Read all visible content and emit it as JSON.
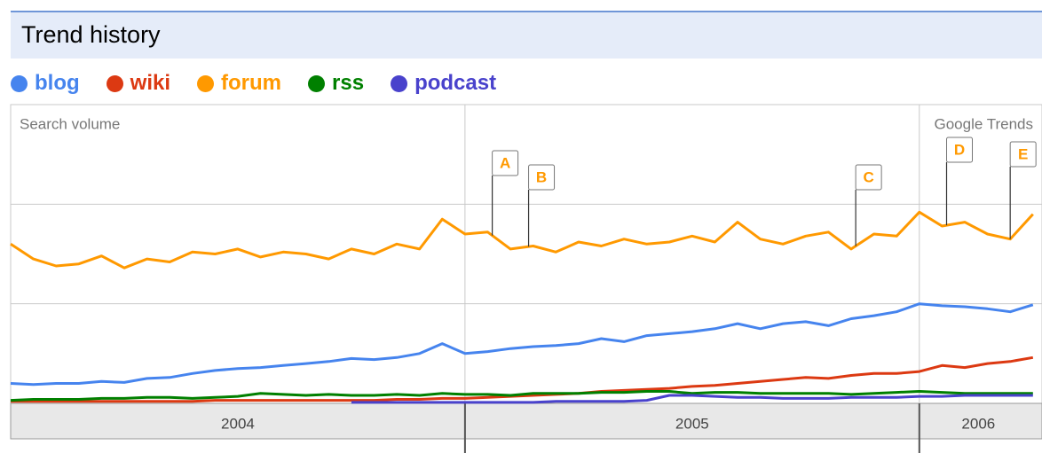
{
  "header": {
    "title": "Trend history"
  },
  "chart_data": {
    "type": "line",
    "y_label": "Search volume",
    "watermark": "Google Trends",
    "xlim": [
      2004,
      2006.27
    ],
    "ylim": [
      0,
      3
    ],
    "yticks": [
      1,
      2
    ],
    "grid": true,
    "xticks": [
      {
        "value": 2004.5,
        "label": "2004"
      },
      {
        "value": 2005.5,
        "label": "2005"
      },
      {
        "value": 2006.13,
        "label": "2006"
      }
    ],
    "year_boundaries": [
      2005,
      2006
    ],
    "x": [
      2004.0,
      2004.05,
      2004.1,
      2004.15,
      2004.2,
      2004.25,
      2004.3,
      2004.35,
      2004.4,
      2004.45,
      2004.5,
      2004.55,
      2004.6,
      2004.65,
      2004.7,
      2004.75,
      2004.8,
      2004.85,
      2004.9,
      2004.95,
      2005.0,
      2005.05,
      2005.1,
      2005.15,
      2005.2,
      2005.25,
      2005.3,
      2005.35,
      2005.4,
      2005.45,
      2005.5,
      2005.55,
      2005.6,
      2005.65,
      2005.7,
      2005.75,
      2005.8,
      2005.85,
      2005.9,
      2005.95,
      2006.0,
      2006.05,
      2006.1,
      2006.15,
      2006.2,
      2006.25
    ],
    "series": [
      {
        "name": "blog",
        "color": "#4684ee",
        "values": [
          0.2,
          0.19,
          0.2,
          0.2,
          0.22,
          0.21,
          0.25,
          0.26,
          0.3,
          0.33,
          0.35,
          0.36,
          0.38,
          0.4,
          0.42,
          0.45,
          0.44,
          0.46,
          0.5,
          0.6,
          0.5,
          0.52,
          0.55,
          0.57,
          0.58,
          0.6,
          0.65,
          0.62,
          0.68,
          0.7,
          0.72,
          0.75,
          0.8,
          0.75,
          0.8,
          0.82,
          0.78,
          0.85,
          0.88,
          0.92,
          1.0,
          0.98,
          0.97,
          0.95,
          0.92,
          0.99
        ]
      },
      {
        "name": "wiki",
        "color": "#dc3912",
        "values": [
          0.02,
          0.02,
          0.02,
          0.02,
          0.02,
          0.02,
          0.02,
          0.02,
          0.02,
          0.03,
          0.03,
          0.03,
          0.03,
          0.03,
          0.03,
          0.03,
          0.03,
          0.04,
          0.04,
          0.05,
          0.05,
          0.06,
          0.07,
          0.08,
          0.09,
          0.1,
          0.12,
          0.13,
          0.14,
          0.15,
          0.17,
          0.18,
          0.2,
          0.22,
          0.24,
          0.26,
          0.25,
          0.28,
          0.3,
          0.3,
          0.32,
          0.38,
          0.36,
          0.4,
          0.42,
          0.46
        ]
      },
      {
        "name": "forum",
        "color": "#ff9900",
        "values": [
          1.6,
          1.45,
          1.38,
          1.4,
          1.48,
          1.36,
          1.45,
          1.42,
          1.52,
          1.5,
          1.55,
          1.47,
          1.52,
          1.5,
          1.45,
          1.55,
          1.5,
          1.6,
          1.55,
          1.85,
          1.7,
          1.72,
          1.55,
          1.58,
          1.52,
          1.62,
          1.58,
          1.65,
          1.6,
          1.62,
          1.68,
          1.62,
          1.82,
          1.65,
          1.6,
          1.68,
          1.72,
          1.55,
          1.7,
          1.68,
          1.92,
          1.78,
          1.82,
          1.7,
          1.65,
          1.9
        ]
      },
      {
        "name": "rss",
        "color": "#008000",
        "values": [
          0.03,
          0.04,
          0.04,
          0.04,
          0.05,
          0.05,
          0.06,
          0.06,
          0.05,
          0.06,
          0.07,
          0.1,
          0.09,
          0.08,
          0.09,
          0.08,
          0.08,
          0.09,
          0.08,
          0.1,
          0.09,
          0.09,
          0.08,
          0.1,
          0.1,
          0.1,
          0.11,
          0.11,
          0.12,
          0.12,
          0.1,
          0.11,
          0.11,
          0.1,
          0.1,
          0.1,
          0.1,
          0.09,
          0.1,
          0.11,
          0.12,
          0.11,
          0.1,
          0.1,
          0.1,
          0.1
        ]
      },
      {
        "name": "podcast",
        "color": "#4942cc",
        "values": [
          null,
          null,
          null,
          null,
          null,
          null,
          null,
          null,
          null,
          null,
          null,
          null,
          null,
          null,
          null,
          0.01,
          0.01,
          0.01,
          0.01,
          0.01,
          0.01,
          0.01,
          0.01,
          0.01,
          0.02,
          0.02,
          0.02,
          0.02,
          0.03,
          0.08,
          0.08,
          0.07,
          0.06,
          0.06,
          0.05,
          0.05,
          0.05,
          0.06,
          0.06,
          0.06,
          0.07,
          0.07,
          0.08,
          0.08,
          0.08,
          0.08
        ]
      }
    ],
    "annotations": [
      {
        "label": "A",
        "x": 2005.06
      },
      {
        "label": "B",
        "x": 2005.14
      },
      {
        "label": "C",
        "x": 2005.86
      },
      {
        "label": "D",
        "x": 2006.06
      },
      {
        "label": "E",
        "x": 2006.2
      }
    ]
  }
}
